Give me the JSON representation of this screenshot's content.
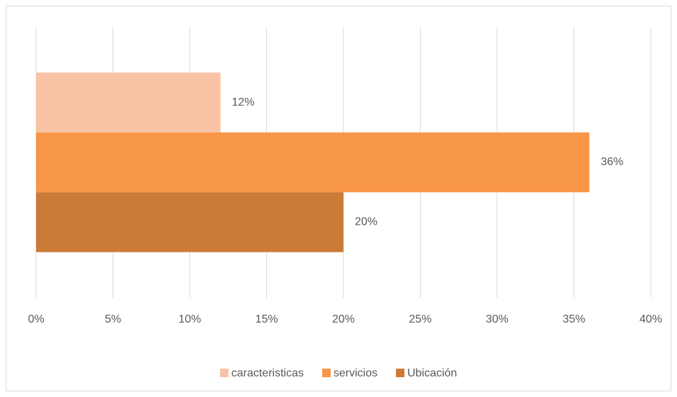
{
  "chart_data": {
    "type": "hbar",
    "categories": [
      null
    ],
    "series": [
      {
        "name": "caracteristicas",
        "color": "#F8C3A4",
        "values": [
          12
        ],
        "value_labels": [
          "12%"
        ]
      },
      {
        "name": "servicios",
        "color": "#F79646",
        "values": [
          36
        ],
        "value_labels": [
          "36%"
        ]
      },
      {
        "name": "Ubicación",
        "color": "#CC7A37",
        "values": [
          20
        ],
        "value_labels": [
          "20%"
        ]
      }
    ],
    "xlim": [
      0,
      40
    ],
    "xticks": [
      {
        "value": 0,
        "label": "0%"
      },
      {
        "value": 5,
        "label": "5%"
      },
      {
        "value": 10,
        "label": "10%"
      },
      {
        "value": 15,
        "label": "15%"
      },
      {
        "value": 20,
        "label": "20%"
      },
      {
        "value": 25,
        "label": "25%"
      },
      {
        "value": 30,
        "label": "30%"
      },
      {
        "value": 35,
        "label": "35%"
      },
      {
        "value": 40,
        "label": "40%"
      }
    ],
    "grid": true,
    "legend": "bottom"
  }
}
